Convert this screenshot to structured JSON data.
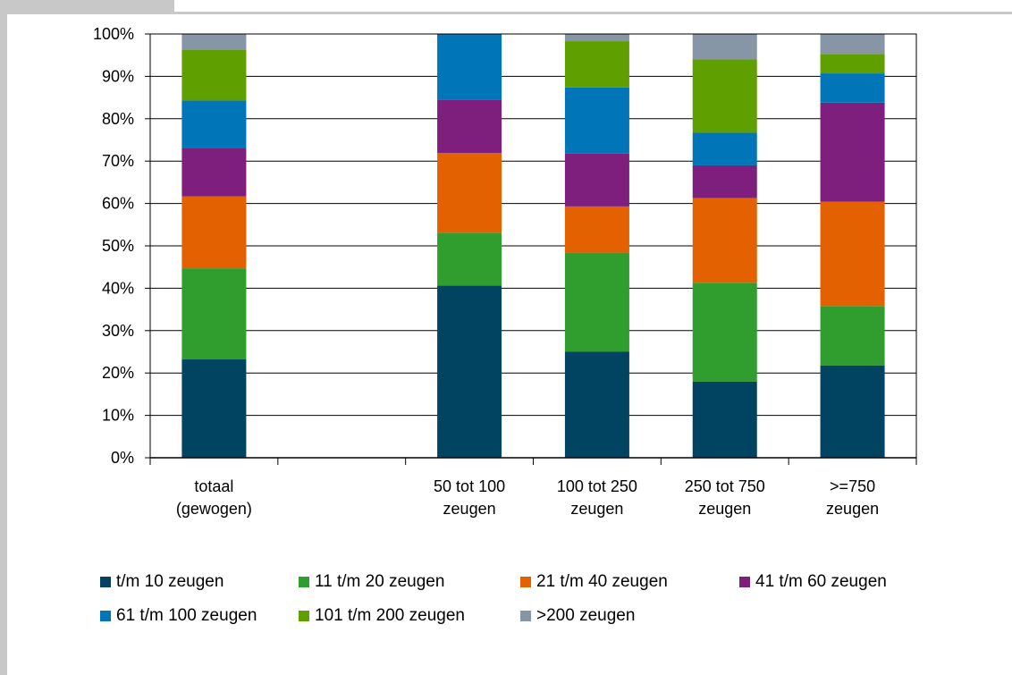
{
  "chart_data": {
    "type": "bar",
    "stacked": true,
    "title": "",
    "xlabel": "",
    "ylabel": "",
    "ylim": [
      0,
      100
    ],
    "yticks": [
      "0%",
      "10%",
      "20%",
      "30%",
      "40%",
      "50%",
      "60%",
      "70%",
      "80%",
      "90%",
      "100%"
    ],
    "categories": [
      [
        "totaal",
        "(gewogen)"
      ],
      [
        "",
        ""
      ],
      [
        "50 tot 100",
        "zeugen"
      ],
      [
        "100 tot 250",
        "zeugen"
      ],
      [
        "250 tot 750",
        "zeugen"
      ],
      [
        ">=750",
        "zeugen"
      ]
    ],
    "series": [
      {
        "name": "t/m 10 zeugen",
        "color": "#004462",
        "values": [
          23.2,
          0,
          40.6,
          25.0,
          18.0,
          21.8
        ]
      },
      {
        "name": "11 t/m 20 zeugen",
        "color": "#2f9e2e",
        "values": [
          21.5,
          0,
          12.5,
          23.4,
          23.3,
          14.0
        ]
      },
      {
        "name": "21 t/m 40 zeugen",
        "color": "#e36100",
        "values": [
          17.0,
          0,
          18.8,
          10.9,
          20.0,
          24.6
        ]
      },
      {
        "name": "41 t/m 60 zeugen",
        "color": "#7f1f7d",
        "values": [
          11.3,
          0,
          12.5,
          12.5,
          7.7,
          23.4
        ]
      },
      {
        "name": "61 t/m 100 zeugen",
        "color": "#0075b8",
        "values": [
          11.3,
          0,
          15.6,
          15.6,
          7.7,
          6.9
        ]
      },
      {
        "name": "101 t/m 200 zeugen",
        "color": "#5fa000",
        "values": [
          11.9,
          0,
          0,
          10.9,
          17.3,
          4.6
        ]
      },
      {
        "name": ">200 zeugen",
        "color": "#8796a6",
        "values": [
          3.8,
          0,
          0,
          1.6,
          6.0,
          4.7
        ]
      }
    ],
    "legend_position": "bottom",
    "grid": true
  }
}
